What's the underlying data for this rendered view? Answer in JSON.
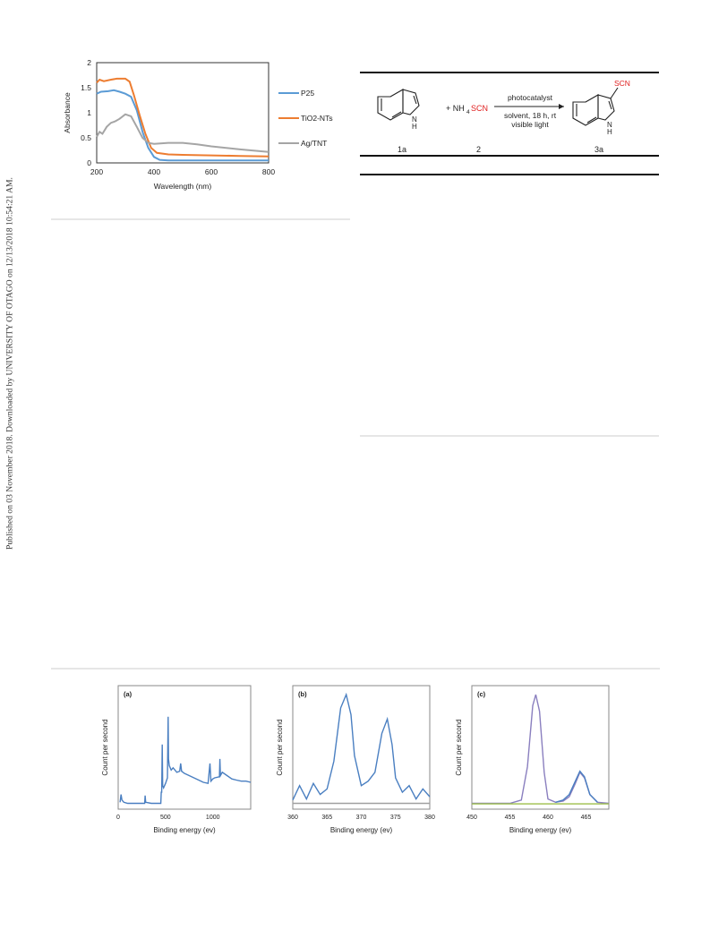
{
  "sidebar": {
    "text": "Published on 03 November 2018. Downloaded by UNIVERSITY OF OTAGO on 12/13/2018 10:54:21 AM."
  },
  "scheme": {
    "reactant1_label": "1a",
    "reactant2_label": "2",
    "product_label": "3a",
    "reagent_text": "+ NH",
    "reagent_sub": "4",
    "reagent_scn": "SCN",
    "arrow_top": "photocatalyst",
    "arrow_bottom1": "solvent, 18 h, rt",
    "arrow_bottom2": "visible light",
    "product_group": "SCN",
    "nh": "N",
    "h": "H",
    "accent": "#e02020"
  },
  "chart_data": [
    {
      "type": "line",
      "title": "",
      "xlabel": "Wavelength (nm)",
      "ylabel": "Absorbance",
      "xlim": [
        200,
        800
      ],
      "ylim": [
        0,
        2
      ],
      "xticks": [
        "200",
        "400",
        "600",
        "800"
      ],
      "yticks": [
        "0",
        "0.5",
        "1",
        "1.5",
        "2"
      ],
      "legend_position": "right",
      "grid": false,
      "series": [
        {
          "name": "P25",
          "color": "#5b9bd5",
          "points": [
            [
              200,
              1.38
            ],
            [
              215,
              1.42
            ],
            [
              240,
              1.43
            ],
            [
              260,
              1.45
            ],
            [
              280,
              1.42
            ],
            [
              300,
              1.38
            ],
            [
              320,
              1.32
            ],
            [
              340,
              1.05
            ],
            [
              360,
              0.62
            ],
            [
              380,
              0.3
            ],
            [
              400,
              0.12
            ],
            [
              420,
              0.06
            ],
            [
              450,
              0.05
            ],
            [
              500,
              0.05
            ],
            [
              600,
              0.05
            ],
            [
              700,
              0.05
            ],
            [
              800,
              0.05
            ]
          ]
        },
        {
          "name": "TiO2-NTs",
          "color": "#ed7d31",
          "points": [
            [
              200,
              1.6
            ],
            [
              210,
              1.66
            ],
            [
              225,
              1.63
            ],
            [
              250,
              1.66
            ],
            [
              270,
              1.68
            ],
            [
              300,
              1.68
            ],
            [
              315,
              1.62
            ],
            [
              330,
              1.35
            ],
            [
              350,
              0.95
            ],
            [
              370,
              0.58
            ],
            [
              390,
              0.3
            ],
            [
              410,
              0.2
            ],
            [
              450,
              0.17
            ],
            [
              500,
              0.16
            ],
            [
              600,
              0.15
            ],
            [
              700,
              0.14
            ],
            [
              800,
              0.13
            ]
          ]
        },
        {
          "name": "Ag/TNT",
          "color": "#a5a5a5",
          "points": [
            [
              200,
              0.52
            ],
            [
              210,
              0.62
            ],
            [
              220,
              0.58
            ],
            [
              235,
              0.72
            ],
            [
              250,
              0.8
            ],
            [
              265,
              0.83
            ],
            [
              280,
              0.88
            ],
            [
              300,
              0.97
            ],
            [
              320,
              0.93
            ],
            [
              340,
              0.72
            ],
            [
              360,
              0.5
            ],
            [
              380,
              0.4
            ],
            [
              400,
              0.38
            ],
            [
              450,
              0.4
            ],
            [
              500,
              0.4
            ],
            [
              550,
              0.37
            ],
            [
              600,
              0.33
            ],
            [
              700,
              0.27
            ],
            [
              800,
              0.22
            ]
          ]
        }
      ]
    },
    {
      "type": "line",
      "title": "(a)",
      "xlabel": "Binding energy (ev)",
      "ylabel": "Count per second",
      "xlim": [
        0,
        1400
      ],
      "xticks": [
        "0",
        "500",
        "1000"
      ],
      "series": [
        {
          "name": "",
          "color": "#4a7fc1",
          "points": [
            [
              20,
              0.03
            ],
            [
              30,
              0.1
            ],
            [
              40,
              0.05
            ],
            [
              60,
              0.03
            ],
            [
              100,
              0.02
            ],
            [
              150,
              0.02
            ],
            [
              200,
              0.02
            ],
            [
              280,
              0.02
            ],
            [
              285,
              0.09
            ],
            [
              290,
              0.03
            ],
            [
              350,
              0.02
            ],
            [
              400,
              0.02
            ],
            [
              450,
              0.02
            ],
            [
              455,
              0.12
            ],
            [
              460,
              0.12
            ],
            [
              465,
              0.55
            ],
            [
              470,
              0.18
            ],
            [
              480,
              0.16
            ],
            [
              500,
              0.2
            ],
            [
              520,
              0.25
            ],
            [
              528,
              0.8
            ],
            [
              532,
              0.42
            ],
            [
              540,
              0.36
            ],
            [
              560,
              0.32
            ],
            [
              580,
              0.34
            ],
            [
              600,
              0.32
            ],
            [
              620,
              0.3
            ],
            [
              650,
              0.31
            ],
            [
              660,
              0.38
            ],
            [
              670,
              0.31
            ],
            [
              700,
              0.29
            ],
            [
              750,
              0.27
            ],
            [
              800,
              0.25
            ],
            [
              850,
              0.23
            ],
            [
              900,
              0.21
            ],
            [
              950,
              0.2
            ],
            [
              970,
              0.38
            ],
            [
              980,
              0.22
            ],
            [
              1000,
              0.24
            ],
            [
              1020,
              0.25
            ],
            [
              1070,
              0.26
            ],
            [
              1075,
              0.42
            ],
            [
              1080,
              0.27
            ],
            [
              1100,
              0.3
            ],
            [
              1150,
              0.27
            ],
            [
              1200,
              0.24
            ],
            [
              1250,
              0.23
            ],
            [
              1300,
              0.22
            ],
            [
              1350,
              0.22
            ],
            [
              1400,
              0.21
            ]
          ]
        }
      ]
    },
    {
      "type": "line",
      "title": "(b)",
      "xlabel": "Binding energy (ev)",
      "ylabel": "Count per second",
      "xlim": [
        360,
        380
      ],
      "xticks": [
        "360",
        "365",
        "370",
        "375",
        "380"
      ],
      "series": [
        {
          "name": "",
          "color": "#4a7fc1",
          "points": [
            [
              360,
              0.05
            ],
            [
              361,
              0.18
            ],
            [
              362,
              0.06
            ],
            [
              363,
              0.2
            ],
            [
              364,
              0.1
            ],
            [
              365,
              0.15
            ],
            [
              366,
              0.4
            ],
            [
              367,
              0.88
            ],
            [
              367.8,
              1.0
            ],
            [
              368.5,
              0.82
            ],
            [
              369,
              0.45
            ],
            [
              370,
              0.18
            ],
            [
              371,
              0.22
            ],
            [
              372,
              0.3
            ],
            [
              373,
              0.65
            ],
            [
              373.8,
              0.78
            ],
            [
              374.5,
              0.55
            ],
            [
              375,
              0.25
            ],
            [
              376,
              0.12
            ],
            [
              377,
              0.18
            ],
            [
              378,
              0.06
            ],
            [
              379,
              0.15
            ],
            [
              380,
              0.08
            ]
          ]
        },
        {
          "name": "",
          "color": "#a0a0a0",
          "points": [
            [
              360,
              0.02
            ],
            [
              380,
              0.02
            ]
          ]
        }
      ]
    },
    {
      "type": "line",
      "title": "(c)",
      "xlabel": "Binding energy (ev)",
      "ylabel": "Count per second",
      "xlim": [
        450,
        468
      ],
      "xticks": [
        "450",
        "455",
        "460",
        "465"
      ],
      "series": [
        {
          "name": "",
          "color": "#8a7fbf",
          "points": [
            [
              450,
              0.02
            ],
            [
              455,
              0.02
            ],
            [
              456.5,
              0.05
            ],
            [
              457.3,
              0.35
            ],
            [
              458,
              0.9
            ],
            [
              458.4,
              1.0
            ],
            [
              458.9,
              0.85
            ],
            [
              459.5,
              0.3
            ],
            [
              460,
              0.06
            ],
            [
              461,
              0.03
            ],
            [
              462,
              0.04
            ],
            [
              462.8,
              0.08
            ],
            [
              463.6,
              0.2
            ],
            [
              464.2,
              0.3
            ],
            [
              464.8,
              0.25
            ],
            [
              465.5,
              0.1
            ],
            [
              466.5,
              0.03
            ],
            [
              468,
              0.02
            ]
          ]
        },
        {
          "name": "",
          "color": "#4a7fc1",
          "points": [
            [
              461,
              0.03
            ],
            [
              462,
              0.05
            ],
            [
              462.8,
              0.1
            ],
            [
              463.6,
              0.22
            ],
            [
              464.2,
              0.31
            ],
            [
              464.8,
              0.26
            ],
            [
              465.5,
              0.1
            ],
            [
              466.5,
              0.03
            ]
          ]
        },
        {
          "name": "",
          "color": "#9dbf4a",
          "points": [
            [
              450,
              0.015
            ],
            [
              468,
              0.015
            ]
          ]
        }
      ]
    }
  ]
}
